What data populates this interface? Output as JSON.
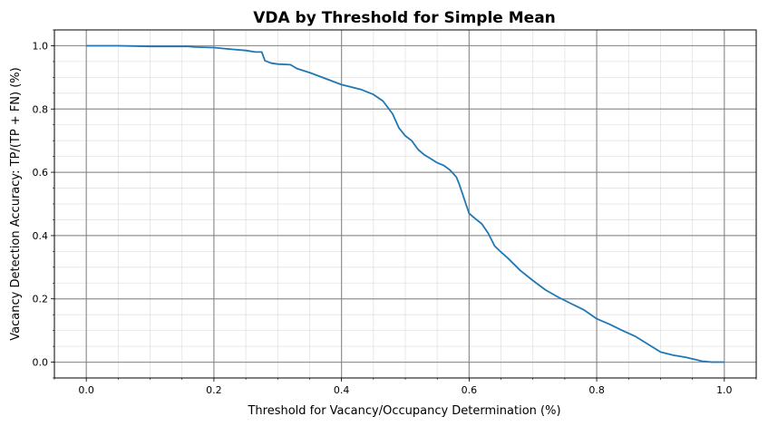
{
  "chart_data": {
    "type": "line",
    "title": "VDA by Threshold  for Simple Mean",
    "xlabel": "Threshold for Vacancy/Occupancy Determination (%)",
    "ylabel": "Vacancy Detection Accuracy: TP/(TP + FN) (%)",
    "xlim": [
      -0.05,
      1.05
    ],
    "ylim": [
      -0.05,
      1.05
    ],
    "x_ticks": [
      0.0,
      0.2,
      0.4,
      0.6,
      0.8,
      1.0
    ],
    "y_ticks": [
      0.0,
      0.2,
      0.4,
      0.6,
      0.8,
      1.0
    ],
    "x_tick_labels": [
      "0.0",
      "0.2",
      "0.4",
      "0.6",
      "0.8",
      "1.0"
    ],
    "y_tick_labels": [
      "0.0",
      "0.2",
      "0.4",
      "0.6",
      "0.8",
      "1.0"
    ],
    "grid": "major and minor",
    "series_color": "#1f77b4",
    "series": [
      {
        "x": [
          0.0,
          0.05,
          0.1,
          0.16,
          0.17,
          0.2,
          0.22,
          0.25,
          0.265,
          0.275,
          0.28,
          0.29,
          0.3,
          0.32,
          0.33,
          0.35,
          0.37,
          0.4,
          0.43,
          0.45,
          0.465,
          0.48,
          0.49,
          0.5,
          0.51,
          0.52,
          0.53,
          0.54,
          0.55,
          0.56,
          0.57,
          0.58,
          0.585,
          0.59,
          0.595,
          0.6,
          0.61,
          0.62,
          0.63,
          0.64,
          0.65,
          0.66,
          0.68,
          0.7,
          0.72,
          0.74,
          0.76,
          0.78,
          0.8,
          0.82,
          0.84,
          0.86,
          0.88,
          0.9,
          0.92,
          0.94,
          0.955,
          0.965,
          0.98,
          1.0
        ],
        "y": [
          1.0,
          1.0,
          0.998,
          0.998,
          0.996,
          0.994,
          0.99,
          0.985,
          0.98,
          0.98,
          0.953,
          0.945,
          0.942,
          0.94,
          0.928,
          0.915,
          0.9,
          0.877,
          0.862,
          0.846,
          0.825,
          0.785,
          0.74,
          0.715,
          0.7,
          0.672,
          0.655,
          0.643,
          0.63,
          0.622,
          0.607,
          0.585,
          0.56,
          0.53,
          0.5,
          0.47,
          0.453,
          0.437,
          0.407,
          0.367,
          0.348,
          0.33,
          0.29,
          0.258,
          0.228,
          0.205,
          0.185,
          0.165,
          0.137,
          0.12,
          0.1,
          0.082,
          0.057,
          0.032,
          0.022,
          0.015,
          0.008,
          0.003,
          0.0,
          0.0
        ]
      }
    ]
  }
}
